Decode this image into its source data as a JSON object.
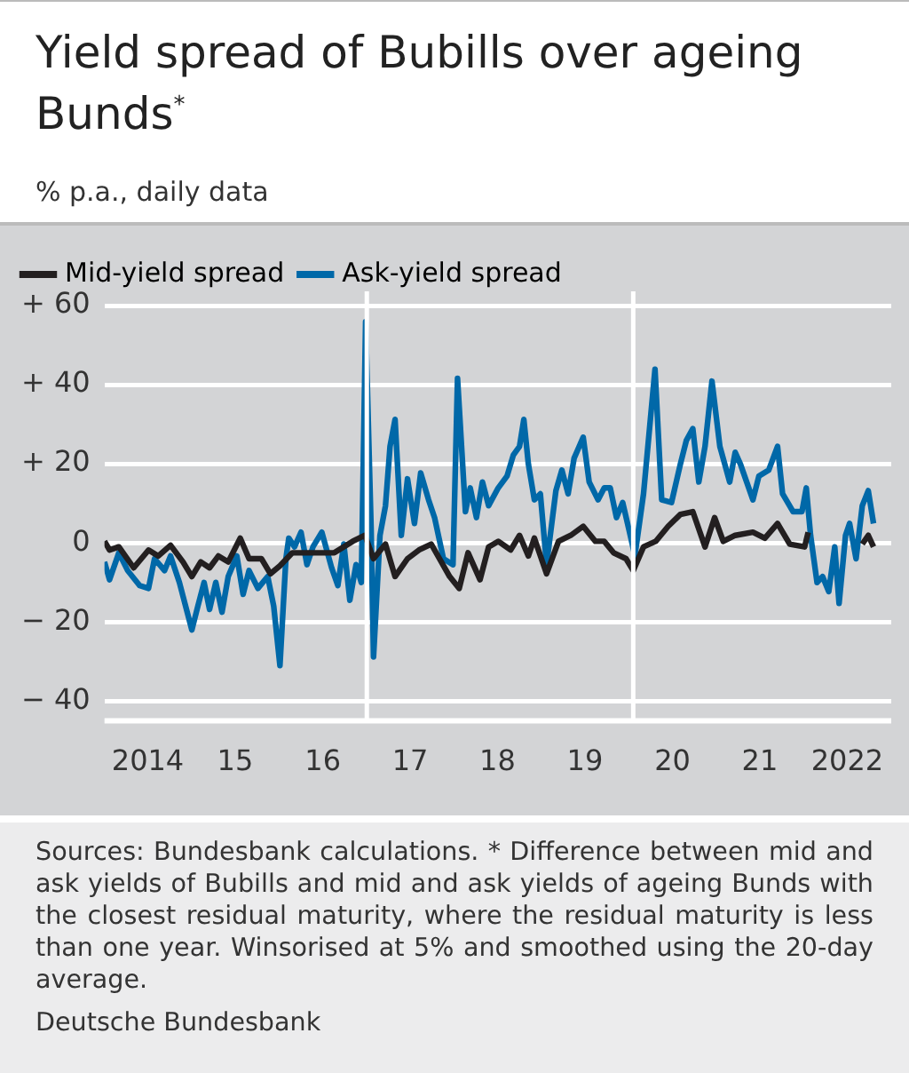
{
  "chart_data": {
    "type": "line",
    "title": "Yield spread of Bubills over ageing Bunds$^{*}$",
    "subtitle": "% p.a., daily data",
    "annotations": [
      "Sources: Bundesbank calculations. * Difference between mid and ask yields of Bubills and mid and ask yields of ageing Bunds with the closest residual maturity, where the residual maturity is less than one year. Winsorised at 5% and smoothed using the 20-day average.",
      "Deutsche Bundesbank"
    ],
    "legend": "top left",
    "grid": "y",
    "line_style": "solid",
    "xlim": [
      "2014-01-01",
      "2023-01-01"
    ],
    "xticks": [
      {
        "value": "2014-07-01",
        "label": "2014"
      },
      {
        "value": "2015-07-01",
        "label": "15"
      },
      {
        "value": "2016-07-01",
        "label": "16"
      },
      {
        "value": "2017-07-01",
        "label": "17"
      },
      {
        "value": "2018-07-01",
        "label": "18"
      },
      {
        "value": "2019-07-01",
        "label": "19"
      },
      {
        "value": "2020-07-01",
        "label": "20"
      },
      {
        "value": "2021-07-01",
        "label": "21"
      },
      {
        "value": "2022-07-01",
        "label": "2022"
      }
    ],
    "ylim": [
      -45,
      60
    ],
    "yticks": [
      {
        "value": 60,
        "label": "+ 60"
      },
      {
        "value": 40,
        "label": "+ 40"
      },
      {
        "value": 20,
        "label": "+ 20"
      },
      0,
      {
        "value": -20,
        "label": "− 20"
      },
      {
        "value": -40,
        "label": "− 40"
      }
    ],
    "ref_lines": [
      {
        "axis": "x",
        "value": "2017-01-01",
        "color": "#ffffff"
      },
      {
        "axis": "x",
        "value": "2020-01-19",
        "color": "#ffffff"
      }
    ],
    "series": [
      {
        "name": "Mid-yield spread",
        "color": "#231f20",
        "x": [
          "2014-01-01",
          "2014-01-22",
          "2014-03-02",
          "2014-05-03",
          "2014-07-04",
          "2014-08-14",
          "2014-10-04",
          "2014-11-25",
          "2015-01-01",
          "2015-02-07",
          "2015-03-16",
          "2015-04-22",
          "2015-06-02",
          "2015-07-22",
          "2015-08-28",
          "2015-10-19",
          "2015-11-25",
          "2016-01-04",
          "2016-02-25",
          "2016-05-07",
          "2016-08-18",
          "2016-11-03",
          "2016-12-24",
          "2017-01-29",
          "2017-03-20",
          "2017-04-29",
          "2017-06-20",
          "2017-08-07",
          "2017-09-27",
          "2017-12-13",
          "2018-01-22",
          "2018-02-28",
          "2018-04-19",
          "2018-05-25",
          "2018-07-04",
          "2018-08-25",
          "2018-10-01",
          "2018-11-07",
          "2018-12-02",
          "2019-01-22",
          "2019-03-13",
          "2019-05-03",
          "2019-06-24",
          "2019-08-14",
          "2019-09-20",
          "2019-10-29",
          "2019-12-20",
          "2020-01-19",
          "2020-03-02",
          "2020-04-22",
          "2020-06-13",
          "2020-08-03",
          "2020-09-24",
          "2020-11-14",
          "2020-12-24",
          "2021-01-29",
          "2021-03-20",
          "2021-06-02",
          "2021-07-22",
          "2021-09-13",
          "2021-11-03",
          "2022-01-04",
          "2022-01-19",
          "2022-04-19",
          "2022-09-02",
          "2022-09-27",
          "2022-10-19"
        ],
        "values": [
          0.4,
          -1.8,
          -1.0,
          -6.3,
          -1.8,
          -3.3,
          -0.6,
          -4.8,
          -8.5,
          -4.8,
          -6.3,
          -3.3,
          -4.8,
          1.2,
          -4.0,
          -4.0,
          -7.8,
          -5.8,
          -2.5,
          -2.5,
          -2.5,
          0.4,
          1.9,
          -4.0,
          -0.3,
          -8.5,
          -4.0,
          -1.8,
          -0.3,
          -8.5,
          -11.5,
          -2.5,
          -9.3,
          -1.0,
          0.4,
          -1.8,
          1.9,
          -3.3,
          1.2,
          -7.8,
          0.4,
          1.9,
          4.2,
          0.4,
          0.4,
          -2.5,
          -4.0,
          -7.0,
          -1.0,
          0.4,
          4.2,
          7.2,
          7.9,
          -1.0,
          6.4,
          0.4,
          1.9,
          2.7,
          1.2,
          4.9,
          -0.3,
          -1.0,
          2.7,
          null,
          -0.3,
          1.9,
          -1.0
        ]
      },
      {
        "name": "Ask-yield spread",
        "color": "#0068a8",
        "x": [
          "2014-01-01",
          "2014-01-22",
          "2014-03-02",
          "2014-04-08",
          "2014-05-28",
          "2014-07-04",
          "2014-07-29",
          "2014-09-09",
          "2014-10-04",
          "2014-11-10",
          "2015-01-01",
          "2015-01-26",
          "2015-02-21",
          "2015-03-16",
          "2015-04-11",
          "2015-05-07",
          "2015-06-02",
          "2015-07-08",
          "2015-08-03",
          "2015-08-28",
          "2015-10-04",
          "2015-11-14",
          "2015-12-09",
          "2016-01-04",
          "2016-01-29",
          "2016-02-10",
          "2016-03-05",
          "2016-04-01",
          "2016-04-26",
          "2016-05-21",
          "2016-06-27",
          "2016-08-07",
          "2016-09-02",
          "2016-09-27",
          "2016-10-22",
          "2016-11-17",
          "2016-12-09",
          "2016-12-27",
          "2017-01-19",
          "2017-01-29",
          "2017-02-25",
          "2017-03-20",
          "2017-04-08",
          "2017-04-29",
          "2017-05-25",
          "2017-06-20",
          "2017-07-19",
          "2017-08-14",
          "2017-09-16",
          "2017-10-11",
          "2017-11-17",
          "2017-12-27",
          "2018-01-15",
          "2018-02-17",
          "2018-03-09",
          "2018-04-04",
          "2018-04-29",
          "2018-05-25",
          "2018-07-04",
          "2018-08-10",
          "2018-09-05",
          "2018-10-01",
          "2018-10-19",
          "2018-11-07",
          "2018-12-02",
          "2018-12-27",
          "2019-01-22",
          "2019-03-02",
          "2019-03-27",
          "2019-04-22",
          "2019-05-17",
          "2019-06-24",
          "2019-07-19",
          "2019-08-25",
          "2019-09-20",
          "2019-10-15",
          "2019-11-10",
          "2019-12-06",
          "2020-01-01",
          "2020-01-26",
          "2020-03-02",
          "2020-04-19",
          "2020-05-17",
          "2020-06-27",
          "2020-08-03",
          "2020-08-28",
          "2020-09-24",
          "2020-10-19",
          "2020-11-14",
          "2020-12-13",
          "2021-01-15",
          "2021-02-25",
          "2021-03-20",
          "2021-04-11",
          "2021-05-07",
          "2021-06-02",
          "2021-06-27",
          "2021-08-07",
          "2021-09-13",
          "2021-10-04",
          "2021-11-17",
          "2021-12-24",
          "2022-01-11",
          "2022-01-29",
          "2022-02-25",
          "2022-03-20",
          "2022-04-15",
          "2022-05-10",
          "2022-05-28",
          "2022-06-24",
          "2022-07-11",
          "2022-08-07",
          "2022-09-02",
          "2022-09-27",
          "2022-10-19"
        ],
        "values": [
          -4.8,
          -9.3,
          -2.5,
          -7.0,
          -10.8,
          -11.5,
          -4.0,
          -7.0,
          -3.3,
          -10.0,
          -22.0,
          -16.0,
          -10.0,
          -16.8,
          -10.0,
          -17.5,
          -8.5,
          -3.3,
          -13.0,
          -7.0,
          -11.5,
          -8.5,
          -16.0,
          -31.0,
          -4.0,
          1.2,
          -1.0,
          2.7,
          -5.5,
          -1.0,
          2.7,
          -6.3,
          -10.8,
          -0.3,
          -14.5,
          -5.5,
          -10.0,
          55.9,
          3.4,
          -28.8,
          1.9,
          9.4,
          24.4,
          31.2,
          1.9,
          16.2,
          4.9,
          17.7,
          10.9,
          6.4,
          -4.0,
          -5.5,
          41.6,
          7.9,
          13.9,
          6.4,
          15.4,
          9.4,
          13.9,
          16.9,
          22.2,
          24.4,
          31.2,
          19.9,
          10.9,
          12.4,
          -5.5,
          13.2,
          18.4,
          12.4,
          21.4,
          26.7,
          15.4,
          10.9,
          13.9,
          13.9,
          6.4,
          10.2,
          3.4,
          -3.3,
          12.4,
          43.9,
          10.9,
          10.2,
          19.9,
          25.9,
          28.9,
          15.4,
          24.4,
          40.9,
          24.4,
          15.4,
          22.9,
          19.9,
          15.4,
          10.9,
          16.9,
          18.4,
          24.4,
          12.4,
          7.9,
          7.9,
          13.9,
          1.9,
          -10.0,
          -8.5,
          -12.3,
          -1.0,
          -15.3,
          1.9,
          4.9,
          -4.0,
          9.4,
          13.2,
          4.9
        ]
      }
    ]
  }
}
